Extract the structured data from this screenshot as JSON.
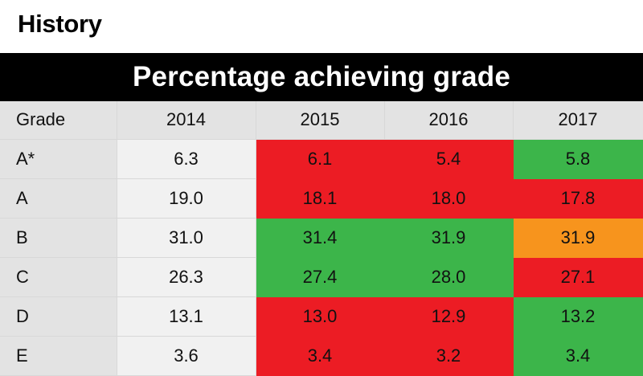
{
  "subject": "History",
  "banner": "Percentage achieving grade",
  "colors": {
    "worse": "#ec1c24",
    "better": "#3cb54a",
    "same": "#f7941d",
    "header_bg": "#e3e3e3",
    "base_bg": "#f1f1f1",
    "banner_bg": "#000000"
  },
  "chart_data": {
    "type": "table",
    "title": "Percentage achieving grade",
    "columns": [
      "Grade",
      "2014",
      "2015",
      "2016",
      "2017"
    ],
    "rows": [
      {
        "grade": "A*",
        "values": [
          "6.3",
          "6.1",
          "5.4",
          "5.8"
        ],
        "status": [
          "none",
          "worse",
          "worse",
          "better"
        ]
      },
      {
        "grade": "A",
        "values": [
          "19.0",
          "18.1",
          "18.0",
          "17.8"
        ],
        "status": [
          "none",
          "worse",
          "worse",
          "worse"
        ]
      },
      {
        "grade": "B",
        "values": [
          "31.0",
          "31.4",
          "31.9",
          "31.9"
        ],
        "status": [
          "none",
          "better",
          "better",
          "same"
        ]
      },
      {
        "grade": "C",
        "values": [
          "26.3",
          "27.4",
          "28.0",
          "27.1"
        ],
        "status": [
          "none",
          "better",
          "better",
          "worse"
        ]
      },
      {
        "grade": "D",
        "values": [
          "13.1",
          "13.0",
          "12.9",
          "13.2"
        ],
        "status": [
          "none",
          "worse",
          "worse",
          "better"
        ]
      },
      {
        "grade": "E",
        "values": [
          "3.6",
          "3.4",
          "3.2",
          "3.4"
        ],
        "status": [
          "none",
          "worse",
          "worse",
          "better"
        ]
      }
    ]
  }
}
